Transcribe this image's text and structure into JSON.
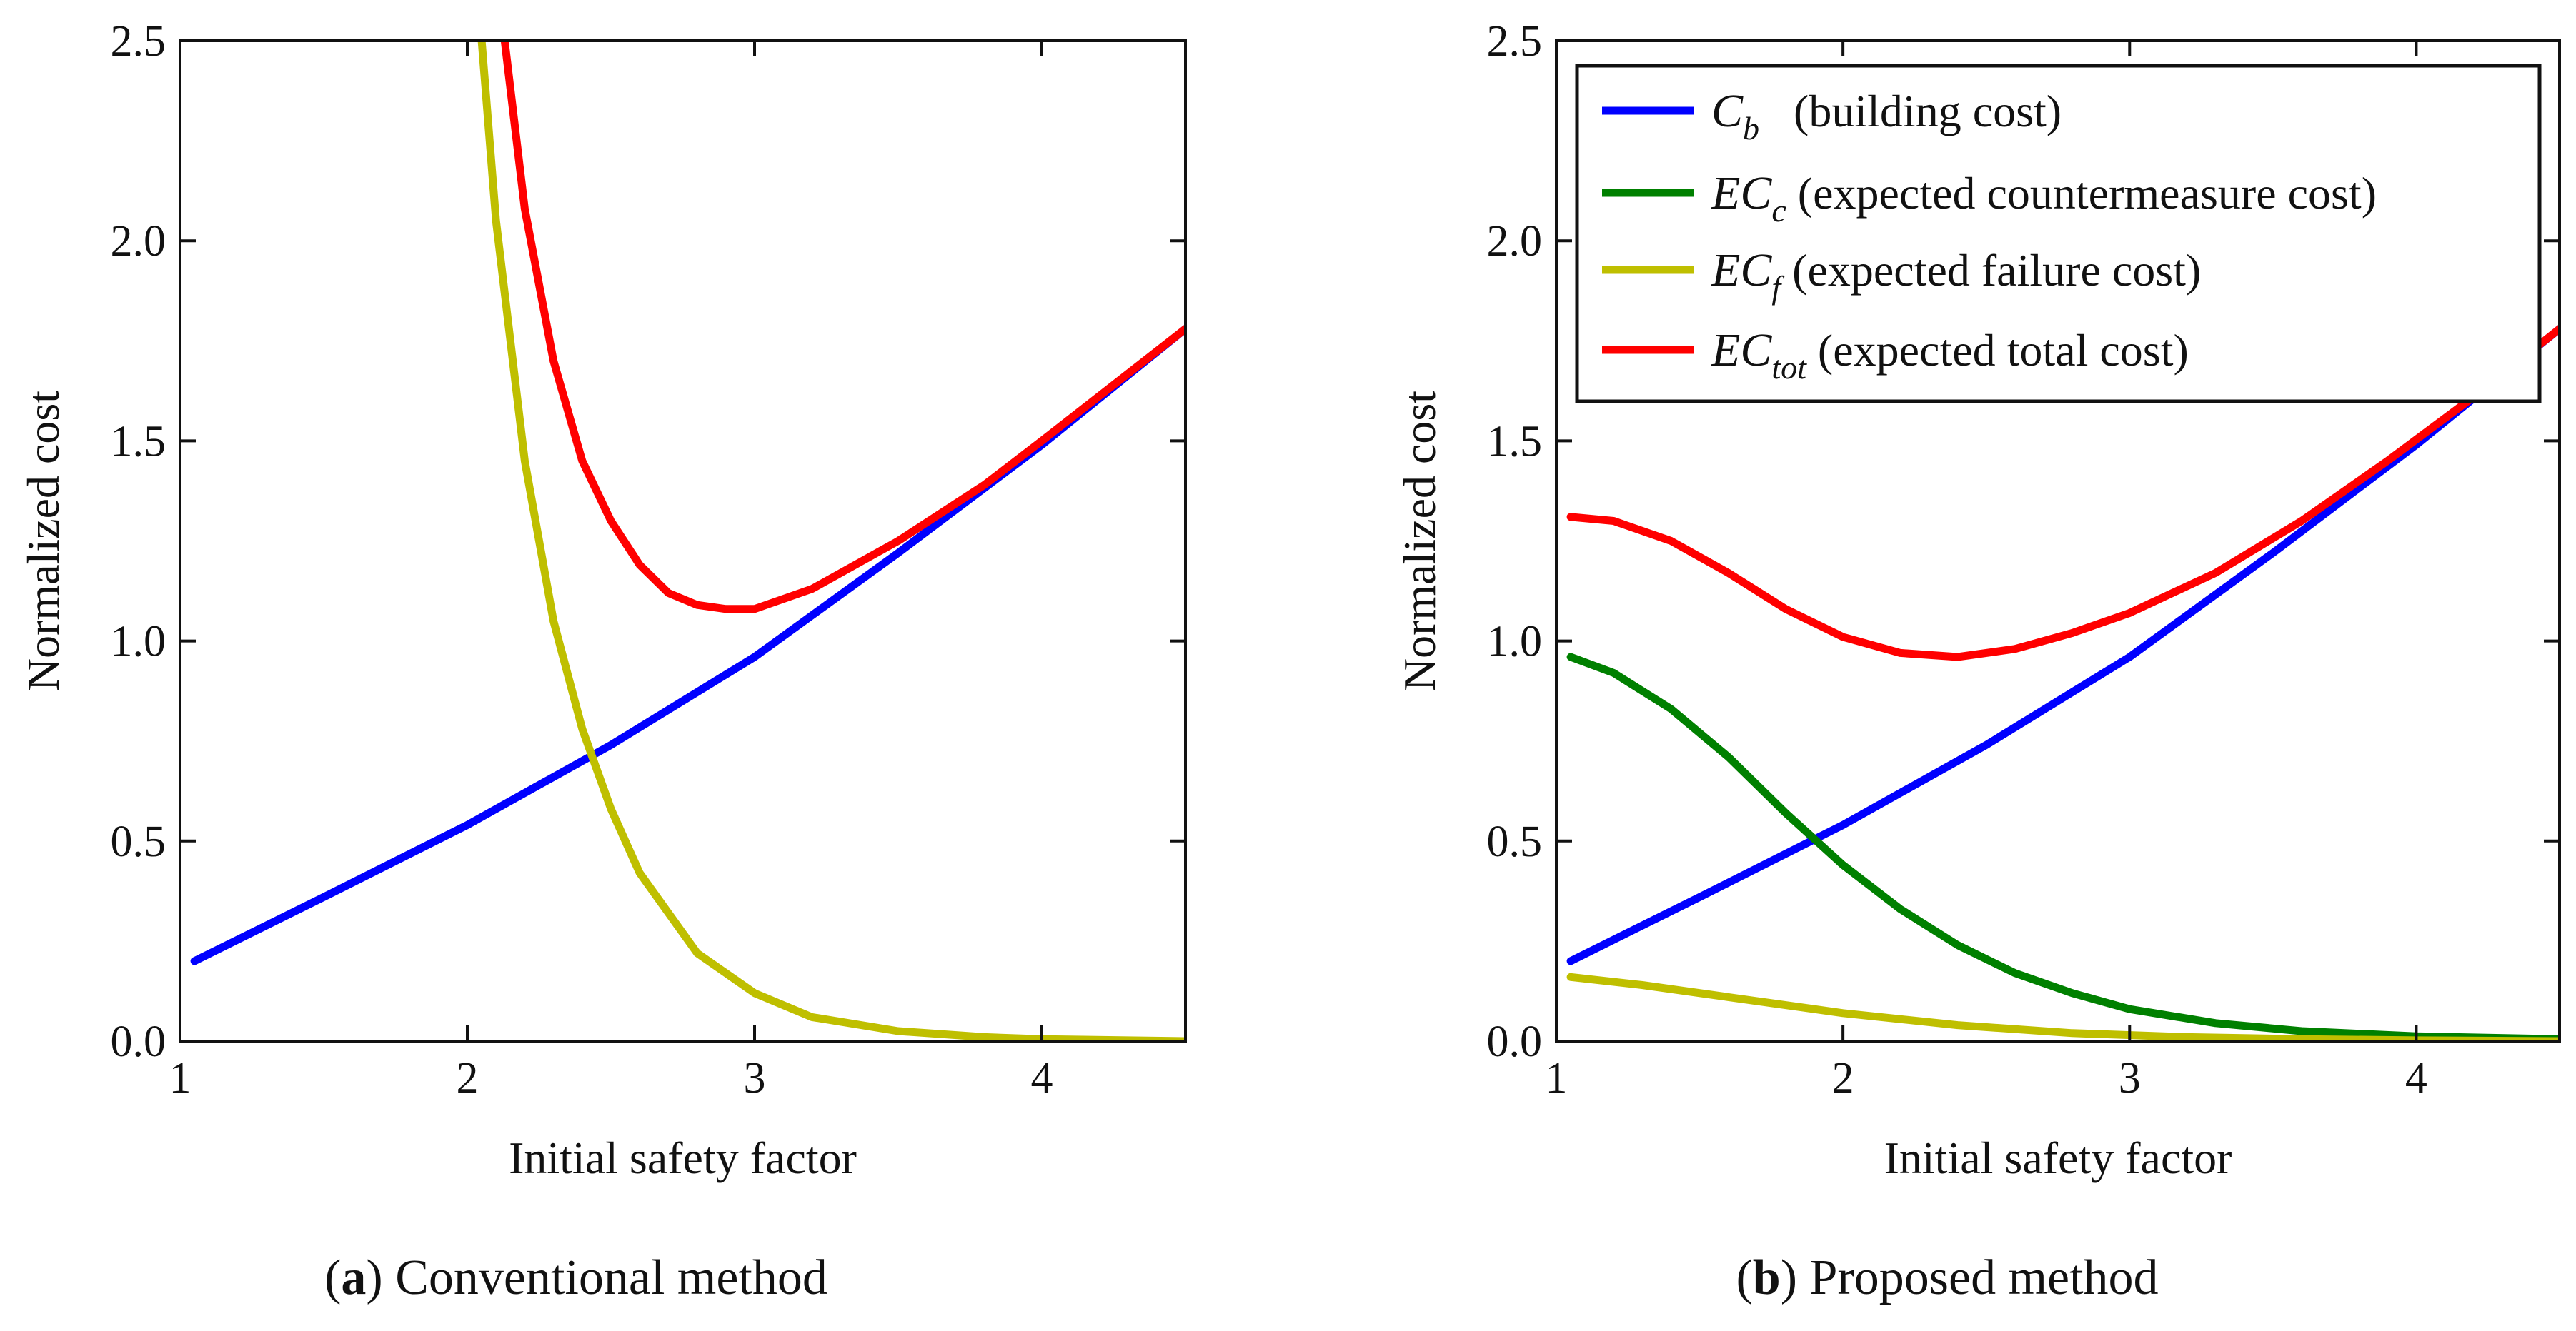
{
  "figure": {
    "panels": [
      {
        "id": "a",
        "caption_label": "a",
        "caption_text": ") Conventional method",
        "caption_open": "(",
        "xlabel": "Initial safety factor",
        "ylabel": "Normalized cost",
        "xlim": [
          1,
          4.5
        ],
        "ylim": [
          0,
          2.5
        ],
        "x_ticks": [
          "1",
          "2",
          "3",
          "4"
        ],
        "y_ticks": [
          "0.0",
          "0.5",
          "1.0",
          "1.5",
          "2.0",
          "2.5"
        ]
      },
      {
        "id": "b",
        "caption_label": "b",
        "caption_text": ") Proposed method",
        "caption_open": "(",
        "xlabel": "Initial safety factor",
        "ylabel": "Normalized cost",
        "xlim": [
          1,
          4.5
        ],
        "ylim": [
          0,
          2.5
        ],
        "x_ticks": [
          "1",
          "2",
          "3",
          "4"
        ],
        "y_ticks": [
          "0.0",
          "0.5",
          "1.0",
          "1.5",
          "2.0",
          "2.5"
        ]
      }
    ],
    "legend": {
      "placement": "top-right of panel b",
      "entries": [
        {
          "symbol": "C",
          "sub": "b",
          "desc": "(building cost)",
          "color": "#0000ff"
        },
        {
          "symbol": "EC",
          "sub": "c",
          "desc": "(expected countermeasure cost)",
          "color": "#008000"
        },
        {
          "symbol": "EC",
          "sub": "f",
          "desc": "(expected failure cost)",
          "color": "#bfbf00"
        },
        {
          "symbol": "EC",
          "sub": "tot",
          "desc": "(expected total cost)",
          "color": "#ff0000"
        }
      ]
    }
  },
  "chart_data": [
    {
      "type": "line",
      "title": "(a) Conventional method",
      "xlabel": "Initial safety factor",
      "ylabel": "Normalized cost",
      "xlim": [
        1,
        4.5
      ],
      "ylim": [
        0,
        2.5
      ],
      "grid": false,
      "series": [
        {
          "name": "C_b (building cost)",
          "color": "#0000ff",
          "x": [
            1.05,
            1.5,
            2.0,
            2.5,
            3.0,
            3.5,
            4.0,
            4.5
          ],
          "y": [
            0.2,
            0.36,
            0.54,
            0.74,
            0.96,
            1.22,
            1.49,
            1.78
          ]
        },
        {
          "name": "EC_f (expected failure cost)",
          "color": "#bfbf00",
          "x": [
            2.05,
            2.1,
            2.2,
            2.3,
            2.4,
            2.5,
            2.6,
            2.8,
            3.0,
            3.2,
            3.5,
            3.8,
            4.0,
            4.5
          ],
          "y": [
            2.5,
            2.05,
            1.45,
            1.05,
            0.78,
            0.58,
            0.42,
            0.22,
            0.12,
            0.06,
            0.025,
            0.01,
            0.005,
            0.0
          ]
        },
        {
          "name": "EC_tot (expected total cost)",
          "color": "#ff0000",
          "x": [
            2.13,
            2.2,
            2.3,
            2.4,
            2.5,
            2.6,
            2.7,
            2.8,
            2.9,
            3.0,
            3.2,
            3.5,
            3.8,
            4.0,
            4.5
          ],
          "y": [
            2.5,
            2.08,
            1.7,
            1.45,
            1.3,
            1.19,
            1.12,
            1.09,
            1.08,
            1.08,
            1.13,
            1.25,
            1.39,
            1.5,
            1.78
          ]
        }
      ]
    },
    {
      "type": "line",
      "title": "(b) Proposed method",
      "xlabel": "Initial safety factor",
      "ylabel": "Normalized cost",
      "xlim": [
        1,
        4.5
      ],
      "ylim": [
        0,
        2.5
      ],
      "grid": false,
      "series": [
        {
          "name": "C_b (building cost)",
          "color": "#0000ff",
          "x": [
            1.05,
            1.5,
            2.0,
            2.5,
            3.0,
            3.5,
            4.0,
            4.5
          ],
          "y": [
            0.2,
            0.36,
            0.54,
            0.74,
            0.96,
            1.22,
            1.49,
            1.78
          ]
        },
        {
          "name": "EC_c (expected countermeasure cost)",
          "color": "#008000",
          "x": [
            1.05,
            1.2,
            1.4,
            1.6,
            1.8,
            2.0,
            2.2,
            2.4,
            2.6,
            2.8,
            3.0,
            3.3,
            3.6,
            4.0,
            4.5
          ],
          "y": [
            0.96,
            0.92,
            0.83,
            0.71,
            0.57,
            0.44,
            0.33,
            0.24,
            0.17,
            0.12,
            0.08,
            0.045,
            0.025,
            0.012,
            0.005
          ]
        },
        {
          "name": "EC_f (expected failure cost)",
          "color": "#bfbf00",
          "x": [
            1.05,
            1.3,
            1.6,
            2.0,
            2.4,
            2.8,
            3.2,
            3.6,
            4.0,
            4.5
          ],
          "y": [
            0.16,
            0.14,
            0.11,
            0.07,
            0.04,
            0.02,
            0.01,
            0.005,
            0.002,
            0.0
          ]
        },
        {
          "name": "EC_tot (expected total cost)",
          "color": "#ff0000",
          "x": [
            1.05,
            1.2,
            1.4,
            1.6,
            1.8,
            2.0,
            2.2,
            2.4,
            2.6,
            2.8,
            3.0,
            3.3,
            3.6,
            3.9,
            4.2,
            4.5
          ],
          "y": [
            1.31,
            1.3,
            1.25,
            1.17,
            1.08,
            1.01,
            0.97,
            0.96,
            0.98,
            1.02,
            1.07,
            1.17,
            1.3,
            1.45,
            1.61,
            1.78
          ]
        }
      ]
    }
  ]
}
